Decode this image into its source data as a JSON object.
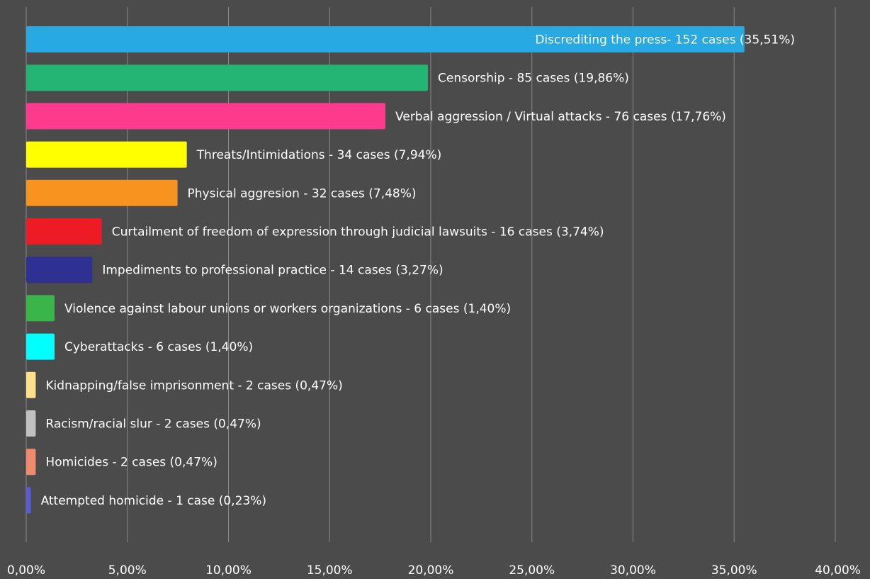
{
  "chart_data": {
    "type": "bar",
    "orientation": "horizontal",
    "grid": true,
    "xlim": [
      0,
      40
    ],
    "xticks": [
      {
        "value": 0,
        "label": "0,00%"
      },
      {
        "value": 5,
        "label": "5,00%"
      },
      {
        "value": 10,
        "label": "10,00%"
      },
      {
        "value": 15,
        "label": "15,00%"
      },
      {
        "value": 20,
        "label": "20,00%"
      },
      {
        "value": 25,
        "label": "25,00%"
      },
      {
        "value": 30,
        "label": "30,00%"
      },
      {
        "value": 35,
        "label": "35,00%"
      },
      {
        "value": 40,
        "label": "40,00%"
      }
    ],
    "bars": [
      {
        "value": 35.51,
        "label": "Discrediting the press- 152 cases (35,51%)",
        "color": "#29a9e1",
        "label_inside": true
      },
      {
        "value": 19.86,
        "label": "Censorship - 85 cases (19,86%)",
        "color": "#23b574"
      },
      {
        "value": 17.76,
        "label": "Verbal aggression / Virtual attacks - 76 cases (17,76%)",
        "color": "#fe3a8c"
      },
      {
        "value": 7.94,
        "label": "Threats/Intimidations - 34 cases (7,94%)",
        "color": "#ffff00"
      },
      {
        "value": 7.48,
        "label": "Physical aggresion - 32 cases (7,48%)",
        "color": "#f7931e"
      },
      {
        "value": 3.74,
        "label": "Curtailment of freedom of expression through judicial lawsuits - 16 cases (3,74%)",
        "color": "#ed1c24"
      },
      {
        "value": 3.27,
        "label": "Impediments to professional practice - 14 cases (3,27%)",
        "color": "#2e3192"
      },
      {
        "value": 1.4,
        "label": "Violence against labour unions or workers organizations - 6 cases (1,40%)",
        "color": "#39b54a"
      },
      {
        "value": 1.4,
        "label": "Cyberattacks - 6 cases (1,40%)",
        "color": "#00ffff"
      },
      {
        "value": 0.47,
        "label": "Kidnapping/false imprisonment - 2 cases (0,47%)",
        "color": "#ffe08a"
      },
      {
        "value": 0.47,
        "label": "Racism/racial slur - 2 cases (0,47%)",
        "color": "#c0c0c0"
      },
      {
        "value": 0.47,
        "label": "Homicides - 2 cases (0,47%)",
        "color": "#f08a6c"
      },
      {
        "value": 0.23,
        "label": "Attempted homicide - 1 case (0,23%)",
        "color": "#5b5bd6"
      }
    ]
  }
}
